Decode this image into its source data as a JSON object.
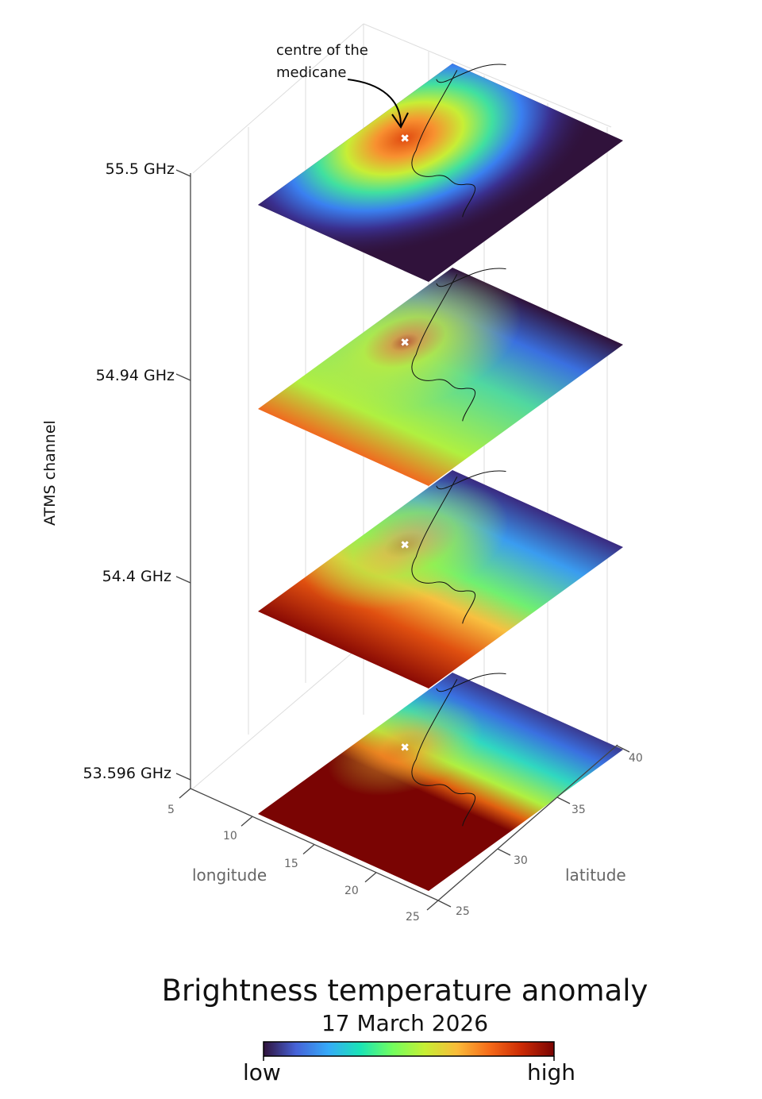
{
  "chart_data": {
    "type": "heatmap",
    "title": "Brightness temperature anomaly",
    "subtitle": "17 March 2026",
    "xlabel": "longitude",
    "ylabel": "latitude",
    "zlabel": "ATMS channel",
    "x_ticks": [
      "5",
      "10",
      "15",
      "20",
      "25"
    ],
    "y_ticks": [
      "25",
      "30",
      "35",
      "40"
    ],
    "xlim": [
      5,
      25
    ],
    "ylim": [
      25,
      40
    ],
    "layers": [
      {
        "channel": "55.5 GHz",
        "description_colors": [
          "#2e1240",
          "#3b5fe0",
          "#22d0c0",
          "#a8f040",
          "#f08020",
          "#d03010"
        ]
      },
      {
        "channel": "54.94 GHz"
      },
      {
        "channel": "54.4 GHz"
      },
      {
        "channel": "53.596 GHz"
      }
    ],
    "annotation": {
      "line1": "centre of the",
      "line2": "medicane"
    },
    "colorbar": {
      "low_label": "low",
      "high_label": "high",
      "colormap": [
        "#30123b",
        "#4662d7",
        "#36aaf9",
        "#1ae4b6",
        "#72fe5e",
        "#c7ef34",
        "#fabb39",
        "#f66b19",
        "#cb2a04",
        "#7a0403"
      ]
    }
  }
}
